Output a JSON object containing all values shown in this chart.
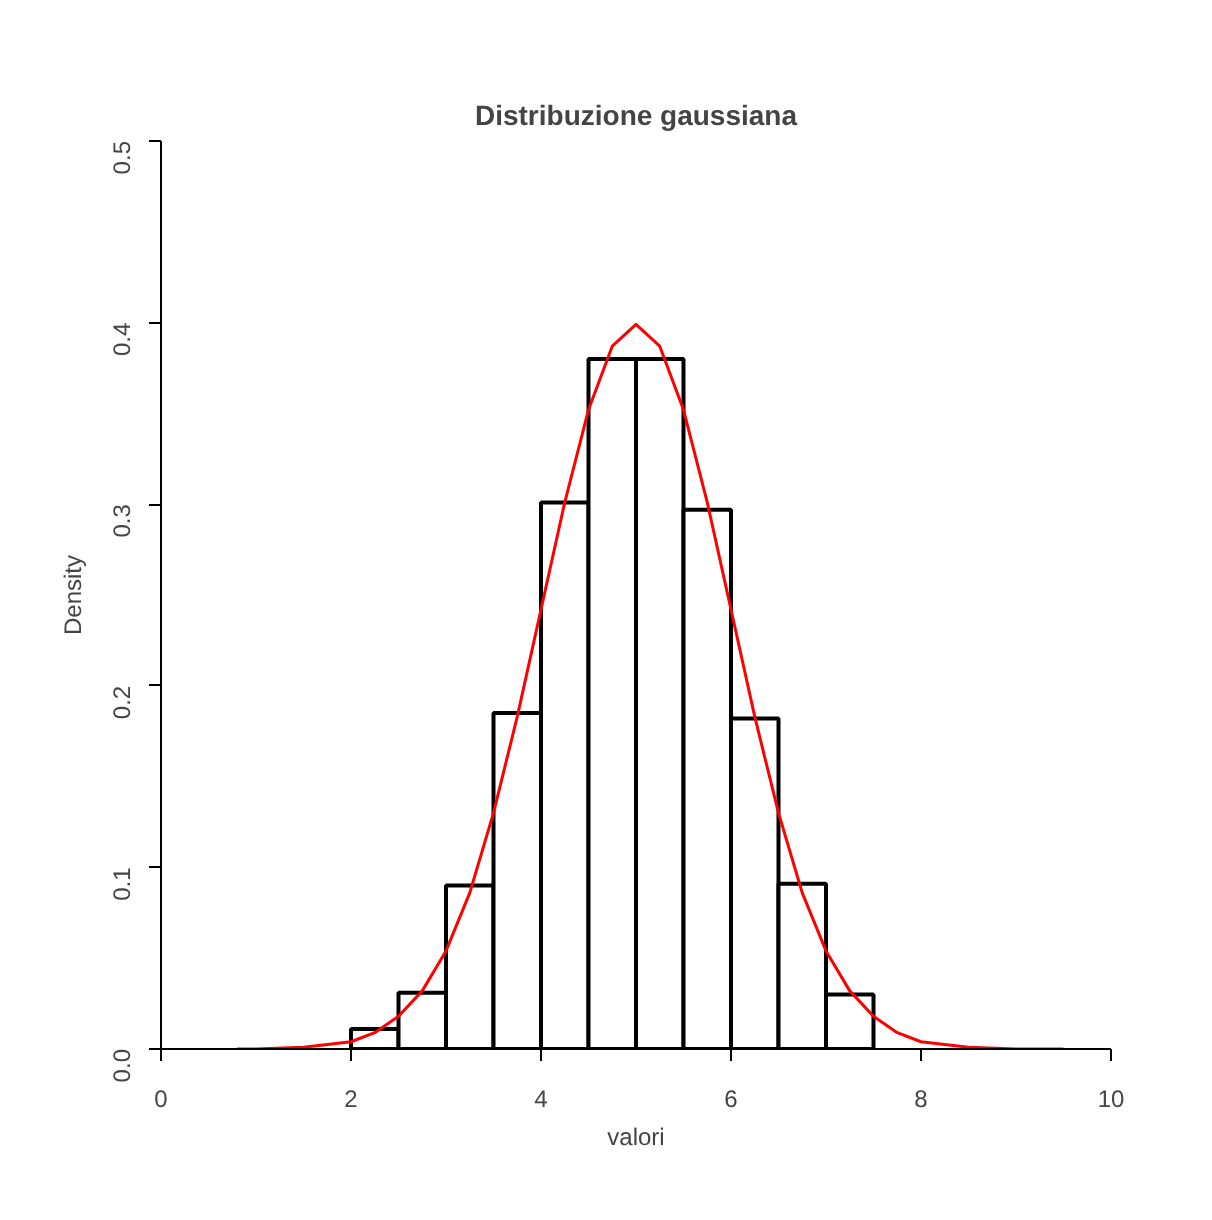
{
  "chart_data": {
    "type": "histogram",
    "title": "Distribuzione gaussiana",
    "xlabel": "valori",
    "ylabel": "Density",
    "bins": [
      2,
      2.5,
      3,
      3.5,
      4,
      4.5,
      5,
      5.5,
      6,
      6.5,
      7,
      7.5
    ],
    "values": [
      0.011,
      0.031,
      0.09,
      0.185,
      0.301,
      0.38,
      0.38,
      0.297,
      0.182,
      0.091,
      0.03
    ],
    "color": "#ffffff",
    "series": [
      {
        "type": "line",
        "color": "#ff0000",
        "x": [
          0.8,
          1.0,
          1.5,
          2.0,
          2.25,
          2.5,
          2.75,
          3.0,
          3.25,
          3.5,
          3.75,
          4.0,
          4.25,
          4.5,
          4.75,
          5.0,
          5.25,
          5.5,
          5.75,
          6.0,
          6.25,
          6.5,
          6.75,
          7.0,
          7.25,
          7.5,
          7.75,
          8.0,
          8.5,
          9.0,
          9.5
        ],
        "values": [
          0.0,
          0.0,
          0.001,
          0.004,
          0.009,
          0.018,
          0.032,
          0.054,
          0.086,
          0.13,
          0.183,
          0.242,
          0.301,
          0.352,
          0.387,
          0.399,
          0.387,
          0.352,
          0.301,
          0.242,
          0.183,
          0.13,
          0.086,
          0.054,
          0.032,
          0.018,
          0.009,
          0.004,
          0.001,
          0.0,
          0.0
        ]
      }
    ],
    "xlim": [
      0,
      10
    ],
    "ylim": [
      0,
      0.5
    ],
    "xticks": [
      0,
      2,
      4,
      6,
      8,
      10
    ],
    "yticks": [
      {
        "value": 0,
        "label": "0.0"
      },
      0.1,
      0.2,
      0.3,
      0.4,
      0.5
    ],
    "grid": false
  }
}
